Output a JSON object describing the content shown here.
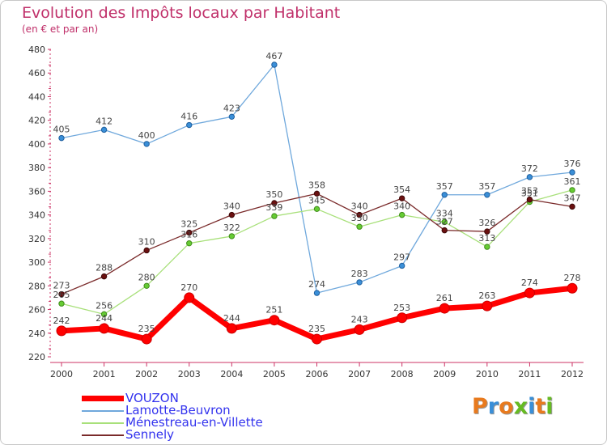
{
  "header": {
    "title": "Evolution des Impôts locaux par Habitant",
    "subtitle": "(en € et par an)"
  },
  "logo": {
    "text": "Proxiti",
    "colors": [
      "#e87a1e",
      "#3a8fd8",
      "#e87a1e",
      "#66bb22",
      "#3a8fd8",
      "#e87a1e",
      "#66bb22"
    ]
  },
  "chart_data": {
    "type": "line",
    "x": [
      "2000",
      "2001",
      "2002",
      "2003",
      "2004",
      "2005",
      "2006",
      "2007",
      "2008",
      "2009",
      "2010",
      "2011",
      "2012"
    ],
    "ylim": [
      220,
      480
    ],
    "yticks": [
      220,
      240,
      260,
      280,
      300,
      320,
      340,
      360,
      380,
      400,
      420,
      440,
      460,
      480
    ],
    "grid": false,
    "legend_position": "bottom-left",
    "series": [
      {
        "name": "VOUZON",
        "color": "#ff0000",
        "values": [
          242,
          244,
          235,
          270,
          244,
          251,
          235,
          243,
          253,
          261,
          263,
          274,
          278
        ]
      },
      {
        "name": "Lamotte-Beuvron",
        "color": "#6fa8dc",
        "values": [
          405,
          412,
          400,
          416,
          423,
          467,
          274,
          283,
          297,
          357,
          357,
          372,
          376
        ]
      },
      {
        "name": "Ménestreau-en-Villette",
        "color": "#a8e07a",
        "values": [
          265,
          256,
          280,
          316,
          322,
          339,
          345,
          330,
          340,
          334,
          313,
          351,
          361
        ]
      },
      {
        "name": "Sennely",
        "color": "#7a2a2a",
        "values": [
          273,
          288,
          310,
          325,
          340,
          350,
          358,
          340,
          354,
          327,
          326,
          353,
          347
        ]
      }
    ]
  }
}
